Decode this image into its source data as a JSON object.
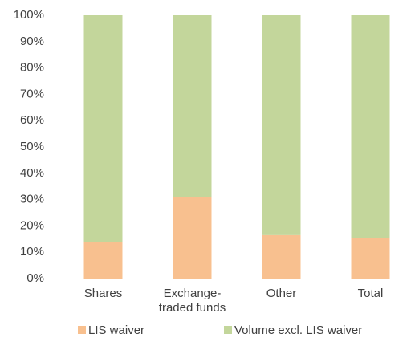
{
  "chart_data": {
    "type": "stacked_bar",
    "categories": [
      "Shares",
      "Exchange-traded funds",
      "Other",
      "Total"
    ],
    "series": [
      {
        "name": "LIS waiver",
        "color": "#f8c08f",
        "values": [
          14,
          31,
          16.5,
          15.5
        ]
      },
      {
        "name": "Volume excl. LIS waiver",
        "color": "#c3d69b",
        "values": [
          86,
          69,
          83.5,
          84.5
        ]
      }
    ],
    "ylim": [
      0,
      100
    ],
    "yticks": [
      {
        "value": 0,
        "label": "0%"
      },
      {
        "value": 10,
        "label": "10%"
      },
      {
        "value": 20,
        "label": "20%"
      },
      {
        "value": 30,
        "label": "30%"
      },
      {
        "value": 40,
        "label": "40%"
      },
      {
        "value": 50,
        "label": "50%"
      },
      {
        "value": 60,
        "label": "60%"
      },
      {
        "value": 70,
        "label": "70%"
      },
      {
        "value": 80,
        "label": "80%"
      },
      {
        "value": 90,
        "label": "90%"
      },
      {
        "value": 100,
        "label": "100%"
      }
    ],
    "grid": false,
    "legend": "bottom"
  }
}
